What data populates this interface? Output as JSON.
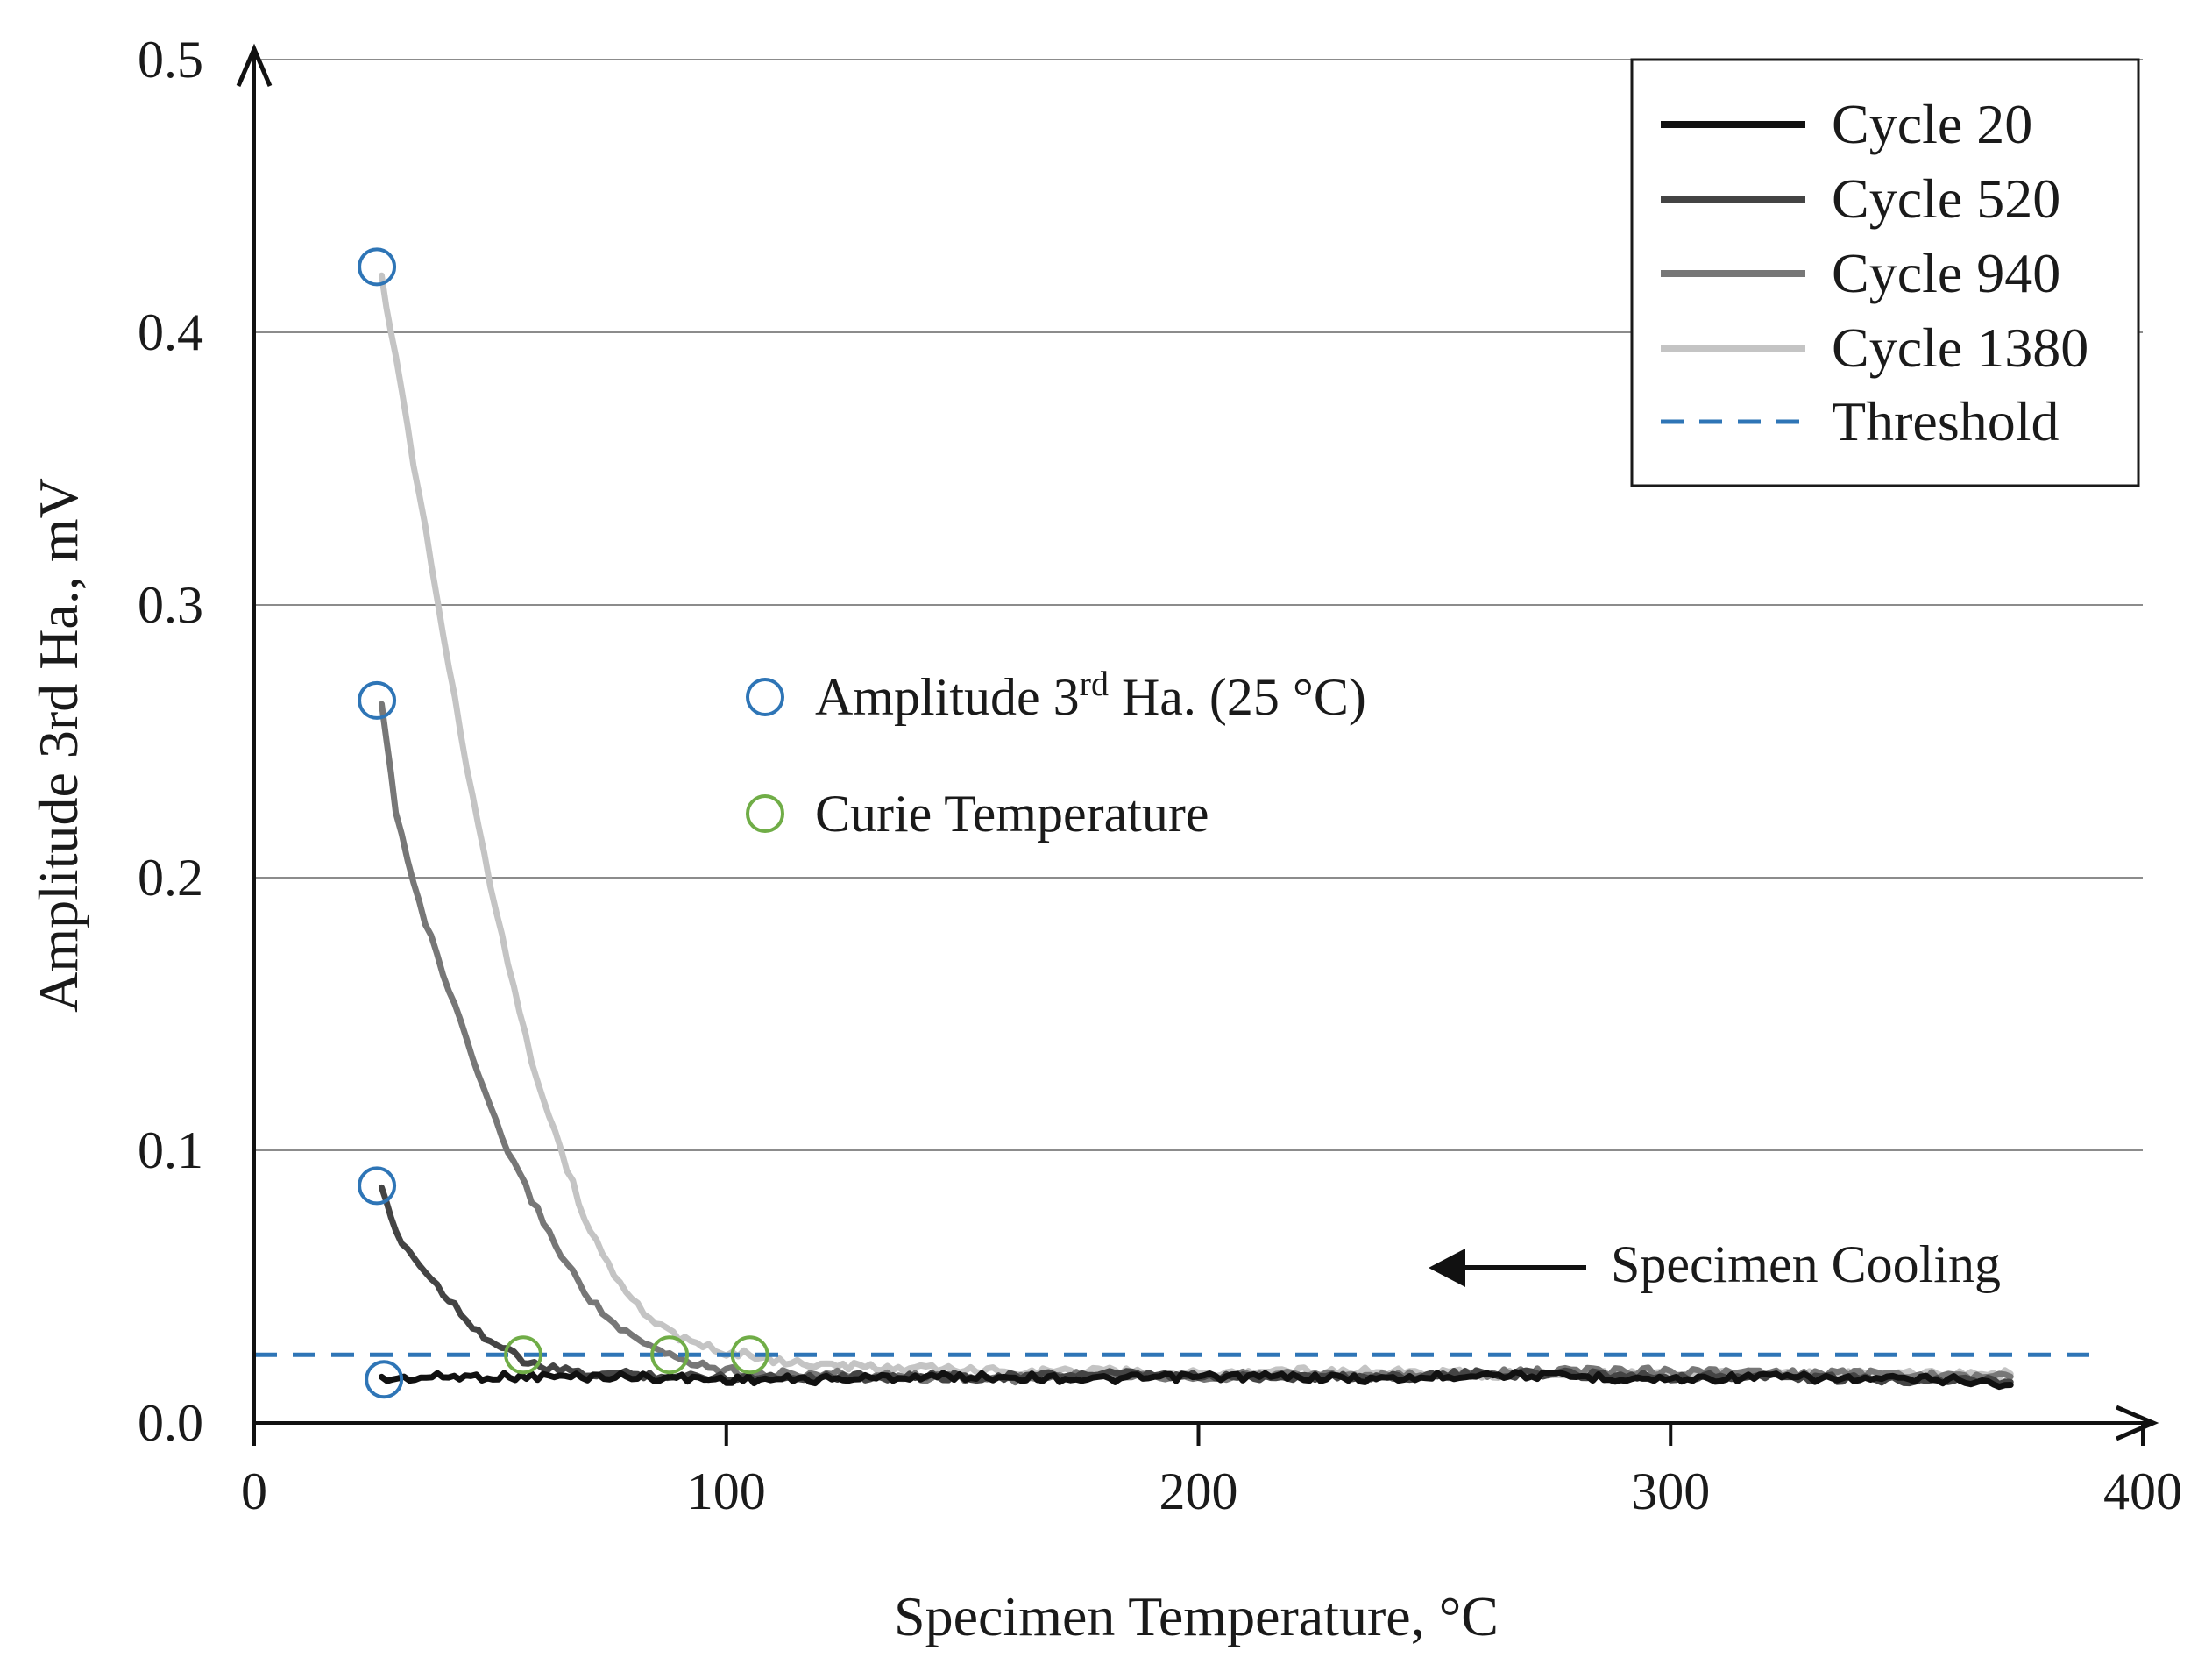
{
  "chart_data": {
    "type": "line",
    "title": "",
    "xlabel": "Specimen Temperature, °C",
    "ylabel": "Amplitude 3rd  Ha., mV",
    "xlim": [
      0,
      400
    ],
    "ylim": [
      0,
      0.5
    ],
    "x_ticks": [
      0,
      100,
      200,
      300,
      400
    ],
    "x_tick_labels": [
      "0",
      "100",
      "200",
      "300",
      "400"
    ],
    "y_ticks": [
      0,
      0.1,
      0.2,
      0.3,
      0.4,
      0.5
    ],
    "y_tick_labels": [
      "0.0",
      "0.1",
      "0.2",
      "0.3",
      "0.4",
      "0.5"
    ],
    "grid": "horizontal",
    "legend_position": "top-right",
    "series": [
      {
        "name": "Cycle 20",
        "color": "#111111",
        "x": [
          27,
          40,
          60,
          80,
          100,
          120,
          140,
          160,
          180,
          200,
          220,
          240,
          260,
          280,
          300,
          320,
          340,
          360,
          372
        ],
        "y": [
          0.016,
          0.017,
          0.017,
          0.017,
          0.016,
          0.016,
          0.017,
          0.017,
          0.016,
          0.017,
          0.017,
          0.016,
          0.018,
          0.017,
          0.016,
          0.017,
          0.016,
          0.016,
          0.014
        ]
      },
      {
        "name": "Cycle 520",
        "color": "#444444",
        "x": [
          27,
          30,
          35,
          40,
          45,
          50,
          55,
          58,
          62,
          66,
          70,
          80,
          90,
          100,
          120,
          140,
          160,
          180,
          200,
          220,
          240,
          260,
          280,
          300,
          320,
          340,
          360,
          372
        ],
        "y": [
          0.085,
          0.07,
          0.058,
          0.048,
          0.038,
          0.03,
          0.025,
          0.022,
          0.02,
          0.019,
          0.018,
          0.018,
          0.017,
          0.017,
          0.017,
          0.017,
          0.017,
          0.018,
          0.017,
          0.017,
          0.017,
          0.018,
          0.018,
          0.017,
          0.017,
          0.016,
          0.016,
          0.015
        ]
      },
      {
        "name": "Cycle 940",
        "color": "#777777",
        "x": [
          27,
          30,
          35,
          40,
          45,
          50,
          55,
          60,
          65,
          70,
          75,
          80,
          85,
          88,
          95,
          105,
          120,
          140,
          160,
          180,
          200,
          220,
          240,
          260,
          280,
          300,
          320,
          340,
          360,
          372
        ],
        "y": [
          0.263,
          0.225,
          0.19,
          0.165,
          0.14,
          0.115,
          0.095,
          0.078,
          0.062,
          0.048,
          0.038,
          0.031,
          0.027,
          0.025,
          0.021,
          0.018,
          0.018,
          0.017,
          0.016,
          0.018,
          0.017,
          0.018,
          0.017,
          0.018,
          0.019,
          0.019,
          0.018,
          0.018,
          0.017,
          0.017
        ]
      },
      {
        "name": "Cycle 1380",
        "color": "#c4c4c4",
        "x": [
          27,
          30,
          35,
          40,
          45,
          50,
          55,
          60,
          65,
          70,
          75,
          80,
          85,
          90,
          95,
          100,
          105,
          110,
          120,
          140,
          160,
          180,
          200,
          220,
          240,
          260,
          280,
          300,
          320,
          340,
          360,
          372
        ],
        "y": [
          0.42,
          0.39,
          0.34,
          0.29,
          0.24,
          0.198,
          0.16,
          0.125,
          0.1,
          0.075,
          0.058,
          0.045,
          0.037,
          0.031,
          0.028,
          0.026,
          0.025,
          0.023,
          0.021,
          0.02,
          0.019,
          0.019,
          0.018,
          0.019,
          0.019,
          0.018,
          0.018,
          0.018,
          0.018,
          0.018,
          0.018,
          0.018
        ]
      }
    ],
    "threshold": {
      "name": "Threshold",
      "y": 0.025,
      "color": "#2e75b6"
    },
    "amplitude_markers": {
      "label": "Amplitude 3",
      "label_sup": "rd",
      "label_rest": " Ha. (25 °C)",
      "color": "#2e75b6",
      "points": [
        {
          "x": 26,
          "y": 0.424
        },
        {
          "x": 26,
          "y": 0.265
        },
        {
          "x": 26,
          "y": 0.087
        },
        {
          "x": 27.5,
          "y": 0.016
        }
      ]
    },
    "curie_markers": {
      "label": "Curie Temperature",
      "color": "#70ad47",
      "points": [
        {
          "x": 57,
          "y": 0.025
        },
        {
          "x": 88,
          "y": 0.025
        },
        {
          "x": 105,
          "y": 0.025
        }
      ]
    },
    "annotation": {
      "text": "Specimen Cooling",
      "direction": "left"
    }
  }
}
